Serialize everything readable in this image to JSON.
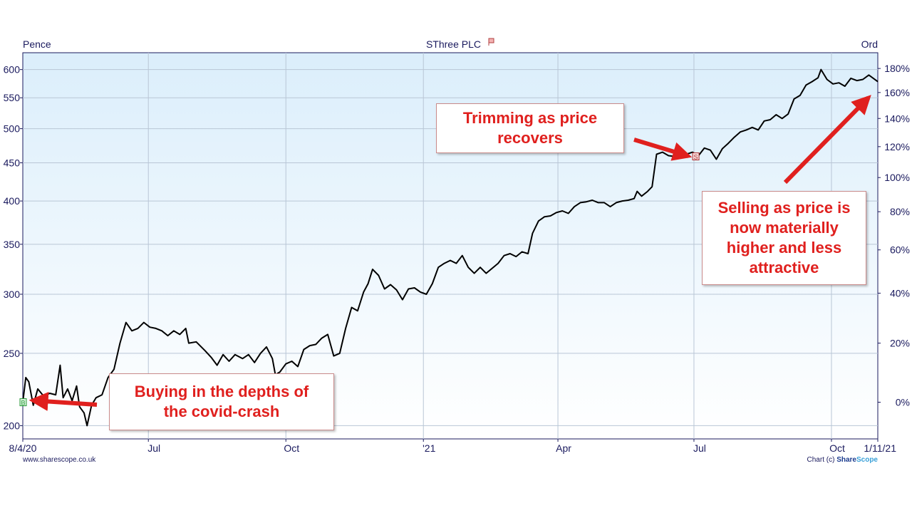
{
  "header": {
    "left_label": "Pence",
    "title": "SThree PLC",
    "right_label": "Ord"
  },
  "footer": {
    "source": "www.sharescope.co.uk",
    "credit_prefix": "Chart (c) ",
    "credit_share": "Share",
    "credit_scope": "Scope"
  },
  "annotations": {
    "buy": "Buying in the depths of the covid-crash",
    "trim": "Trimming as price recovers",
    "sell": "Selling as price is now materially higher and less attractive",
    "buy_marker": "B",
    "sell_marker": "S"
  },
  "colors": {
    "plot_top": "#dbeefb",
    "plot_bottom": "#ffffff",
    "grid": "#b9c6d6",
    "line": "#000000",
    "annotation": "#e0201e",
    "axis_text": "#1a1a5e"
  },
  "chart_data": {
    "type": "line",
    "title": "SThree PLC",
    "ylabel_left": "Pence",
    "ylabel_right": "Ord",
    "y_scale": "log",
    "ylim": [
      192,
      632
    ],
    "xlim": [
      "2020-04-08",
      "2021-11-01"
    ],
    "y_ticks": [
      200,
      250,
      300,
      350,
      400,
      450,
      500,
      550,
      600
    ],
    "pct_ticks": [
      "0%",
      "20%",
      "40%",
      "60%",
      "80%",
      "100%",
      "120%",
      "140%",
      "160%",
      "180%"
    ],
    "pct_base": 215,
    "x_ticks": [
      {
        "date": "2020-04-08",
        "label": "8/4/20"
      },
      {
        "date": "2020-07-01",
        "label": "Jul"
      },
      {
        "date": "2020-10-01",
        "label": "Oct"
      },
      {
        "date": "2021-01-01",
        "label": "'21"
      },
      {
        "date": "2021-04-01",
        "label": "Apr"
      },
      {
        "date": "2021-07-01",
        "label": "Jul"
      },
      {
        "date": "2021-10-01",
        "label": "Oct"
      },
      {
        "date": "2021-11-01",
        "label": "1/11/21"
      }
    ],
    "grid": true,
    "series": [
      {
        "values": [
          [
            "2020-04-08",
            215
          ],
          [
            "2020-04-10",
            232
          ],
          [
            "2020-04-12",
            229
          ],
          [
            "2020-04-15",
            213
          ],
          [
            "2020-04-18",
            224
          ],
          [
            "2020-04-22",
            219
          ],
          [
            "2020-04-26",
            221
          ],
          [
            "2020-04-30",
            220
          ],
          [
            "2020-05-03",
            241
          ],
          [
            "2020-05-05",
            218
          ],
          [
            "2020-05-08",
            224
          ],
          [
            "2020-05-11",
            216
          ],
          [
            "2020-05-14",
            226
          ],
          [
            "2020-05-16",
            212
          ],
          [
            "2020-05-19",
            208
          ],
          [
            "2020-05-21",
            200
          ],
          [
            "2020-05-24",
            213
          ],
          [
            "2020-05-27",
            218
          ],
          [
            "2020-05-31",
            220
          ],
          [
            "2020-06-04",
            232
          ],
          [
            "2020-06-08",
            238
          ],
          [
            "2020-06-12",
            258
          ],
          [
            "2020-06-16",
            275
          ],
          [
            "2020-06-20",
            268
          ],
          [
            "2020-06-24",
            270
          ],
          [
            "2020-06-28",
            275
          ],
          [
            "2020-07-02",
            271
          ],
          [
            "2020-07-06",
            270
          ],
          [
            "2020-07-10",
            268
          ],
          [
            "2020-07-14",
            264
          ],
          [
            "2020-07-18",
            268
          ],
          [
            "2020-07-22",
            265
          ],
          [
            "2020-07-26",
            270
          ],
          [
            "2020-07-28",
            258
          ],
          [
            "2020-08-02",
            259
          ],
          [
            "2020-08-08",
            252
          ],
          [
            "2020-08-12",
            247
          ],
          [
            "2020-08-16",
            241
          ],
          [
            "2020-08-20",
            249
          ],
          [
            "2020-08-24",
            244
          ],
          [
            "2020-08-28",
            249
          ],
          [
            "2020-09-02",
            246
          ],
          [
            "2020-09-06",
            249
          ],
          [
            "2020-09-10",
            243
          ],
          [
            "2020-09-14",
            250
          ],
          [
            "2020-09-18",
            255
          ],
          [
            "2020-09-22",
            246
          ],
          [
            "2020-09-24",
            234
          ],
          [
            "2020-09-27",
            236
          ],
          [
            "2020-10-01",
            242
          ],
          [
            "2020-10-05",
            244
          ],
          [
            "2020-10-09",
            240
          ],
          [
            "2020-10-13",
            253
          ],
          [
            "2020-10-17",
            256
          ],
          [
            "2020-10-21",
            257
          ],
          [
            "2020-10-25",
            262
          ],
          [
            "2020-10-29",
            265
          ],
          [
            "2020-11-02",
            248
          ],
          [
            "2020-11-06",
            250
          ],
          [
            "2020-11-10",
            270
          ],
          [
            "2020-11-14",
            288
          ],
          [
            "2020-11-18",
            285
          ],
          [
            "2020-11-22",
            302
          ],
          [
            "2020-11-25",
            310
          ],
          [
            "2020-11-28",
            324
          ],
          [
            "2020-12-02",
            318
          ],
          [
            "2020-12-06",
            305
          ],
          [
            "2020-12-10",
            309
          ],
          [
            "2020-12-14",
            304
          ],
          [
            "2020-12-18",
            295
          ],
          [
            "2020-12-22",
            305
          ],
          [
            "2020-12-26",
            306
          ],
          [
            "2020-12-30",
            302
          ],
          [
            "2021-01-03",
            300
          ],
          [
            "2021-01-07",
            310
          ],
          [
            "2021-01-11",
            326
          ],
          [
            "2021-01-15",
            330
          ],
          [
            "2021-01-19",
            333
          ],
          [
            "2021-01-23",
            330
          ],
          [
            "2021-01-27",
            338
          ],
          [
            "2021-01-31",
            326
          ],
          [
            "2021-02-04",
            320
          ],
          [
            "2021-02-08",
            326
          ],
          [
            "2021-02-12",
            320
          ],
          [
            "2021-02-16",
            325
          ],
          [
            "2021-02-20",
            330
          ],
          [
            "2021-02-24",
            338
          ],
          [
            "2021-02-28",
            340
          ],
          [
            "2021-03-04",
            337
          ],
          [
            "2021-03-08",
            342
          ],
          [
            "2021-03-12",
            340
          ],
          [
            "2021-03-15",
            362
          ],
          [
            "2021-03-19",
            376
          ],
          [
            "2021-03-23",
            381
          ],
          [
            "2021-03-27",
            382
          ],
          [
            "2021-03-31",
            386
          ],
          [
            "2021-04-04",
            388
          ],
          [
            "2021-04-08",
            385
          ],
          [
            "2021-04-12",
            393
          ],
          [
            "2021-04-16",
            398
          ],
          [
            "2021-04-20",
            399
          ],
          [
            "2021-04-24",
            401
          ],
          [
            "2021-04-28",
            398
          ],
          [
            "2021-05-02",
            398
          ],
          [
            "2021-05-06",
            393
          ],
          [
            "2021-05-10",
            398
          ],
          [
            "2021-05-14",
            400
          ],
          [
            "2021-05-18",
            401
          ],
          [
            "2021-05-22",
            403
          ],
          [
            "2021-05-24",
            412
          ],
          [
            "2021-05-27",
            406
          ],
          [
            "2021-05-31",
            412
          ],
          [
            "2021-06-03",
            418
          ],
          [
            "2021-06-06",
            462
          ],
          [
            "2021-06-10",
            465
          ],
          [
            "2021-06-14",
            460
          ],
          [
            "2021-06-18",
            459
          ],
          [
            "2021-06-22",
            465
          ],
          [
            "2021-06-26",
            462
          ],
          [
            "2021-06-30",
            465
          ],
          [
            "2021-07-04",
            460
          ],
          [
            "2021-07-08",
            471
          ],
          [
            "2021-07-12",
            468
          ],
          [
            "2021-07-16",
            455
          ],
          [
            "2021-07-20",
            470
          ],
          [
            "2021-07-24",
            478
          ],
          [
            "2021-07-28",
            487
          ],
          [
            "2021-08-01",
            495
          ],
          [
            "2021-08-05",
            498
          ],
          [
            "2021-08-09",
            502
          ],
          [
            "2021-08-13",
            498
          ],
          [
            "2021-08-17",
            512
          ],
          [
            "2021-08-21",
            514
          ],
          [
            "2021-08-25",
            522
          ],
          [
            "2021-08-29",
            516
          ],
          [
            "2021-09-02",
            523
          ],
          [
            "2021-09-06",
            548
          ],
          [
            "2021-09-10",
            554
          ],
          [
            "2021-09-14",
            572
          ],
          [
            "2021-09-18",
            578
          ],
          [
            "2021-09-22",
            585
          ],
          [
            "2021-09-24",
            600
          ],
          [
            "2021-09-28",
            582
          ],
          [
            "2021-10-02",
            574
          ],
          [
            "2021-10-06",
            576
          ],
          [
            "2021-10-10",
            570
          ],
          [
            "2021-10-14",
            584
          ],
          [
            "2021-10-18",
            580
          ],
          [
            "2021-10-22",
            582
          ],
          [
            "2021-10-26",
            590
          ],
          [
            "2021-10-29",
            584
          ],
          [
            "2021-11-01",
            578
          ]
        ]
      }
    ],
    "markers": [
      {
        "label": "B",
        "date": "2020-04-08",
        "value": 215
      },
      {
        "label": "S",
        "date": "2021-07-02",
        "value": 459
      }
    ]
  }
}
